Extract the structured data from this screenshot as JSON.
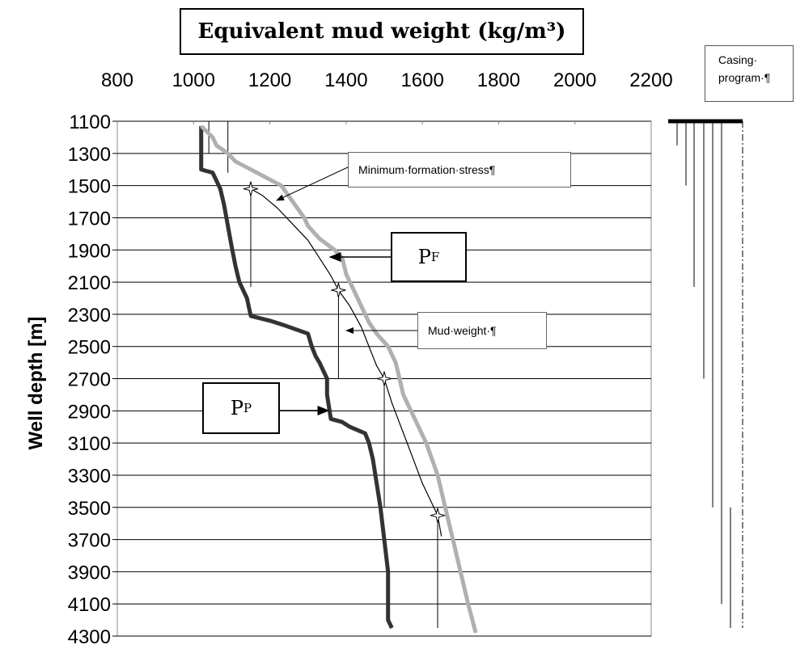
{
  "chart_data": {
    "type": "line",
    "title": "Equivalent mud weight (kg/m³)",
    "xlabel": "Equivalent mud weight (kg/m³)",
    "ylabel": "Well depth [m]",
    "x_ticks": [
      "800",
      "1000",
      "1200",
      "1400",
      "1600",
      "1800",
      "2000",
      "2200"
    ],
    "y_ticks": [
      "1100",
      "1300",
      "1500",
      "1700",
      "1900",
      "2100",
      "2300",
      "2500",
      "2700",
      "2900",
      "3100",
      "3300",
      "3500",
      "3700",
      "3900",
      "4100",
      "4300"
    ],
    "xlim": [
      800,
      2200
    ],
    "ylim": [
      1100,
      4300
    ],
    "y_inverted": true,
    "grid": "horizontal",
    "series": [
      {
        "name": "PP",
        "color": "#333333",
        "points": [
          [
            1020,
            1130
          ],
          [
            1020,
            1400
          ],
          [
            1050,
            1420
          ],
          [
            1070,
            1520
          ],
          [
            1080,
            1620
          ],
          [
            1090,
            1750
          ],
          [
            1100,
            1880
          ],
          [
            1110,
            2000
          ],
          [
            1120,
            2100
          ],
          [
            1140,
            2200
          ],
          [
            1150,
            2310
          ],
          [
            1200,
            2340
          ],
          [
            1240,
            2370
          ],
          [
            1300,
            2420
          ],
          [
            1310,
            2500
          ],
          [
            1320,
            2560
          ],
          [
            1330,
            2600
          ],
          [
            1340,
            2650
          ],
          [
            1350,
            2700
          ],
          [
            1350,
            2800
          ],
          [
            1360,
            2950
          ],
          [
            1390,
            2970
          ],
          [
            1410,
            3000
          ],
          [
            1450,
            3040
          ],
          [
            1460,
            3100
          ],
          [
            1470,
            3200
          ],
          [
            1480,
            3350
          ],
          [
            1490,
            3500
          ],
          [
            1500,
            3700
          ],
          [
            1510,
            3900
          ],
          [
            1510,
            4200
          ],
          [
            1520,
            4250
          ]
        ]
      },
      {
        "name": "PF",
        "color": "#b0b0b0",
        "points": [
          [
            1020,
            1130
          ],
          [
            1050,
            1200
          ],
          [
            1060,
            1250
          ],
          [
            1090,
            1300
          ],
          [
            1110,
            1350
          ],
          [
            1150,
            1400
          ],
          [
            1190,
            1450
          ],
          [
            1230,
            1500
          ],
          [
            1260,
            1600
          ],
          [
            1290,
            1700
          ],
          [
            1300,
            1750
          ],
          [
            1330,
            1830
          ],
          [
            1370,
            1900
          ],
          [
            1390,
            1950
          ],
          [
            1400,
            2050
          ],
          [
            1410,
            2100
          ],
          [
            1420,
            2150
          ],
          [
            1440,
            2250
          ],
          [
            1450,
            2300
          ],
          [
            1460,
            2350
          ],
          [
            1480,
            2420
          ],
          [
            1510,
            2500
          ],
          [
            1530,
            2600
          ],
          [
            1540,
            2700
          ],
          [
            1550,
            2800
          ],
          [
            1570,
            2900
          ],
          [
            1590,
            3000
          ],
          [
            1610,
            3100
          ],
          [
            1640,
            3300
          ],
          [
            1660,
            3500
          ],
          [
            1680,
            3700
          ],
          [
            1700,
            3900
          ],
          [
            1720,
            4100
          ],
          [
            1740,
            4280
          ]
        ]
      },
      {
        "name": "Minimum formation stress",
        "color": "#000000",
        "points": [
          [
            1150,
            1520
          ],
          [
            1180,
            1560
          ],
          [
            1220,
            1640
          ],
          [
            1260,
            1740
          ],
          [
            1300,
            1840
          ],
          [
            1330,
            1950
          ],
          [
            1360,
            2060
          ],
          [
            1380,
            2150
          ],
          [
            1410,
            2250
          ],
          [
            1440,
            2380
          ],
          [
            1460,
            2500
          ],
          [
            1480,
            2620
          ],
          [
            1500,
            2700
          ],
          [
            1520,
            2850
          ],
          [
            1560,
            3100
          ],
          [
            1600,
            3350
          ],
          [
            1640,
            3550
          ],
          [
            1650,
            3680
          ]
        ]
      }
    ],
    "markers": [
      [
        1150,
        1520
      ],
      [
        1380,
        2150
      ],
      [
        1500,
        2700
      ],
      [
        1640,
        3550
      ]
    ],
    "mud_weight_steps": [
      {
        "x": 1150,
        "from": 1520,
        "to": 2130
      },
      {
        "x": 1380,
        "from": 2150,
        "to": 2700
      },
      {
        "x": 1500,
        "from": 2700,
        "to": 3500
      },
      {
        "x": 1640,
        "from": 3550,
        "to": 4250
      }
    ],
    "casing_strings_bottom_depths": [
      1250,
      1500,
      2130,
      2700,
      3500,
      4100,
      4250
    ],
    "annotations": {
      "min_stress": "Minimum·formation·stress¶",
      "pf_main": "P",
      "pf_sub": "F",
      "mud_weight": "Mud·weight·¶",
      "pp_main": "P",
      "pp_sub": "P",
      "casing_line1": "Casing·",
      "casing_line2": "program·¶"
    }
  }
}
